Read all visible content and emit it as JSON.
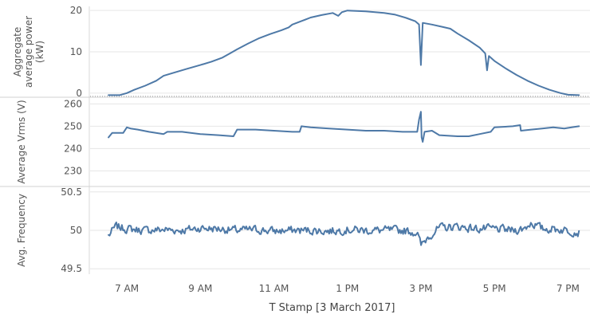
{
  "colors": {
    "series": "#4e79a7",
    "grid": "#e6e6e6",
    "separator": "#d2d2d2",
    "text": "#555555"
  },
  "chart_data": [
    {
      "type": "line",
      "ylabel_lines": [
        "Aggregate",
        "average power",
        "(kW)"
      ],
      "ylim": [
        -1,
        21
      ],
      "yticks": [
        0,
        10,
        20
      ],
      "zero_line": true,
      "grid": true,
      "series": [
        {
          "points": [
            [
              6.5,
              -0.5
            ],
            [
              6.8,
              -0.5
            ],
            [
              7.0,
              0.0
            ],
            [
              7.2,
              0.8
            ],
            [
              7.5,
              1.8
            ],
            [
              7.8,
              3.0
            ],
            [
              8.0,
              4.2
            ],
            [
              8.3,
              5.0
            ],
            [
              8.6,
              5.8
            ],
            [
              9.0,
              6.8
            ],
            [
              9.3,
              7.6
            ],
            [
              9.6,
              8.6
            ],
            [
              9.8,
              9.6
            ],
            [
              10.0,
              10.6
            ],
            [
              10.3,
              12.0
            ],
            [
              10.6,
              13.3
            ],
            [
              10.9,
              14.3
            ],
            [
              11.2,
              15.2
            ],
            [
              11.4,
              15.9
            ],
            [
              11.5,
              16.6
            ],
            [
              11.8,
              17.6
            ],
            [
              12.0,
              18.3
            ],
            [
              12.3,
              18.9
            ],
            [
              12.6,
              19.4
            ],
            [
              12.75,
              18.7
            ],
            [
              12.85,
              19.6
            ],
            [
              13.0,
              20.0
            ],
            [
              13.5,
              19.8
            ],
            [
              14.0,
              19.4
            ],
            [
              14.3,
              19.0
            ],
            [
              14.6,
              18.2
            ],
            [
              14.85,
              17.4
            ],
            [
              14.95,
              16.6
            ],
            [
              15.0,
              6.8
            ],
            [
              15.05,
              17.0
            ],
            [
              15.3,
              16.6
            ],
            [
              15.6,
              16.0
            ],
            [
              15.8,
              15.6
            ],
            [
              16.0,
              14.4
            ],
            [
              16.3,
              12.8
            ],
            [
              16.6,
              11.0
            ],
            [
              16.75,
              9.6
            ],
            [
              16.8,
              5.5
            ],
            [
              16.85,
              9.0
            ],
            [
              17.0,
              7.8
            ],
            [
              17.3,
              6.0
            ],
            [
              17.6,
              4.4
            ],
            [
              17.9,
              3.0
            ],
            [
              18.2,
              1.8
            ],
            [
              18.5,
              0.8
            ],
            [
              18.8,
              0.0
            ],
            [
              19.0,
              -0.4
            ],
            [
              19.3,
              -0.5
            ]
          ]
        }
      ]
    },
    {
      "type": "line",
      "ylabel": "Average Vrms (V)",
      "ylim": [
        223,
        263
      ],
      "yticks": [
        230,
        240,
        250,
        260
      ],
      "grid": true,
      "series": [
        {
          "points": [
            [
              6.5,
              245
            ],
            [
              6.6,
              247
            ],
            [
              6.9,
              247
            ],
            [
              7.0,
              249.5
            ],
            [
              7.1,
              249
            ],
            [
              7.3,
              248.5
            ],
            [
              7.6,
              247.5
            ],
            [
              8.0,
              246.5
            ],
            [
              8.1,
              247.5
            ],
            [
              8.5,
              247.5
            ],
            [
              9.0,
              246.5
            ],
            [
              9.5,
              246
            ],
            [
              9.9,
              245.5
            ],
            [
              10.0,
              248.5
            ],
            [
              10.5,
              248.5
            ],
            [
              11.0,
              248
            ],
            [
              11.5,
              247.5
            ],
            [
              11.7,
              247.5
            ],
            [
              11.75,
              250
            ],
            [
              12.0,
              249.5
            ],
            [
              12.5,
              249
            ],
            [
              13.0,
              248.5
            ],
            [
              13.5,
              248
            ],
            [
              14.0,
              248
            ],
            [
              14.5,
              247.5
            ],
            [
              14.9,
              247.5
            ],
            [
              14.95,
              253
            ],
            [
              15.0,
              256.5
            ],
            [
              15.02,
              245
            ],
            [
              15.05,
              243
            ],
            [
              15.1,
              247.5
            ],
            [
              15.3,
              248
            ],
            [
              15.5,
              246
            ],
            [
              16.0,
              245.5
            ],
            [
              16.3,
              245.5
            ],
            [
              16.6,
              246.5
            ],
            [
              16.9,
              247.5
            ],
            [
              17.0,
              249.5
            ],
            [
              17.5,
              250
            ],
            [
              17.7,
              250.5
            ],
            [
              17.72,
              248
            ],
            [
              18.0,
              248.5
            ],
            [
              18.3,
              249
            ],
            [
              18.6,
              249.5
            ],
            [
              18.9,
              249
            ],
            [
              19.1,
              249.5
            ],
            [
              19.3,
              250
            ]
          ]
        }
      ]
    },
    {
      "type": "line",
      "ylabel": "Avg. Frequency",
      "ylim": [
        49.43,
        50.57
      ],
      "yticks": [
        49.5,
        50.0,
        50.5
      ],
      "grid": true,
      "noise": {
        "amplitude": 0.075,
        "seed": 7
      },
      "series": [
        {
          "points": [
            [
              6.5,
              49.93
            ],
            [
              6.7,
              50.05
            ],
            [
              7.0,
              50.02
            ],
            [
              7.5,
              50.0
            ],
            [
              8.0,
              50.01
            ],
            [
              8.5,
              50.0
            ],
            [
              9.0,
              50.03
            ],
            [
              9.5,
              50.02
            ],
            [
              10.0,
              50.0
            ],
            [
              10.5,
              50.01
            ],
            [
              11.0,
              49.99
            ],
            [
              11.5,
              50.0
            ],
            [
              12.0,
              50.0
            ],
            [
              12.5,
              49.99
            ],
            [
              13.0,
              50.01
            ],
            [
              13.5,
              50.0
            ],
            [
              14.0,
              50.0
            ],
            [
              14.5,
              50.0
            ],
            [
              14.9,
              49.97
            ],
            [
              15.0,
              49.8
            ],
            [
              15.2,
              49.92
            ],
            [
              15.5,
              50.03
            ],
            [
              16.0,
              50.05
            ],
            [
              16.5,
              50.02
            ],
            [
              17.0,
              50.02
            ],
            [
              17.5,
              50.0
            ],
            [
              17.8,
              50.02
            ],
            [
              18.0,
              50.1
            ],
            [
              18.3,
              50.02
            ],
            [
              18.6,
              50.02
            ],
            [
              19.0,
              50.0
            ],
            [
              19.3,
              49.97
            ]
          ]
        }
      ]
    }
  ],
  "x_axis": {
    "unit": "hour of day",
    "range": [
      6.0,
      19.6
    ],
    "ticks": [
      {
        "value": 7,
        "label": "7 AM"
      },
      {
        "value": 9,
        "label": "9 AM"
      },
      {
        "value": 11,
        "label": "11 AM"
      },
      {
        "value": 13,
        "label": "1 PM"
      },
      {
        "value": 15,
        "label": "3 PM"
      },
      {
        "value": 17,
        "label": "5 PM"
      },
      {
        "value": 19,
        "label": "7 PM"
      }
    ],
    "title": "T Stamp [3 March 2017]"
  }
}
